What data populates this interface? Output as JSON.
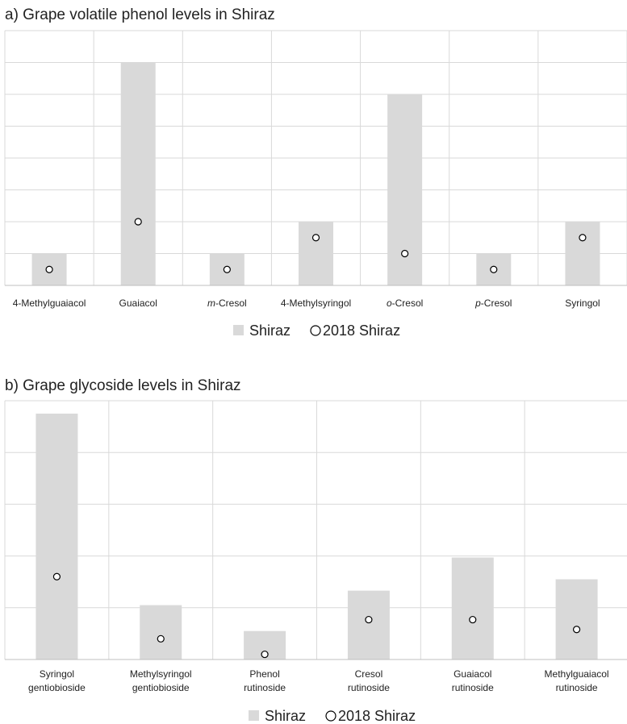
{
  "chart_data": [
    {
      "type": "bar",
      "title": "a) Grape volatile phenol levels in Shiraz",
      "categories": [
        {
          "text": "4-Methylguaiacol",
          "italic": "",
          "rest": ""
        },
        {
          "text": "Guaiacol",
          "italic": "",
          "rest": ""
        },
        {
          "text": "",
          "italic": "m",
          "rest": "-Cresol"
        },
        {
          "text": "4-Methylsyringol",
          "italic": "",
          "rest": ""
        },
        {
          "text": "",
          "italic": "o",
          "rest": "-Cresol"
        },
        {
          "text": "",
          "italic": "p",
          "rest": "-Cresol"
        },
        {
          "text": "Syringol",
          "italic": "",
          "rest": ""
        }
      ],
      "ylim": [
        0,
        8
      ],
      "grid": true,
      "legend_position": "bottom",
      "series": [
        {
          "name": "Shiraz",
          "kind": "bar",
          "color": "#d9d9d9",
          "values": [
            1,
            7,
            1,
            2,
            6,
            1,
            2
          ]
        },
        {
          "name": "2018 Shiraz",
          "kind": "marker",
          "marker": "open-circle",
          "values": [
            0.5,
            2,
            0.5,
            1.5,
            1,
            0.5,
            1.5
          ]
        }
      ]
    },
    {
      "type": "bar",
      "title": "b) Grape glycoside levels in Shiraz",
      "categories": [
        {
          "lines": [
            "Syringol",
            "gentiobioside"
          ]
        },
        {
          "lines": [
            "Methylsyringol",
            "gentiobioside"
          ]
        },
        {
          "lines": [
            "Phenol",
            "rutinoside"
          ]
        },
        {
          "lines": [
            "Cresol",
            "rutinoside"
          ]
        },
        {
          "lines": [
            "Guaiacol",
            "rutinoside"
          ]
        },
        {
          "lines": [
            "Methylguaiacol",
            "rutinoside"
          ]
        }
      ],
      "ylim": [
        0,
        5
      ],
      "grid": true,
      "legend_position": "bottom",
      "series": [
        {
          "name": "Shiraz",
          "kind": "bar",
          "color": "#d9d9d9",
          "values": [
            4.75,
            1.05,
            0.55,
            1.33,
            1.97,
            1.55
          ]
        },
        {
          "name": "2018 Shiraz",
          "kind": "marker",
          "marker": "open-circle",
          "values": [
            1.6,
            0.4,
            0.1,
            0.77,
            0.77,
            0.58
          ]
        }
      ]
    }
  ]
}
